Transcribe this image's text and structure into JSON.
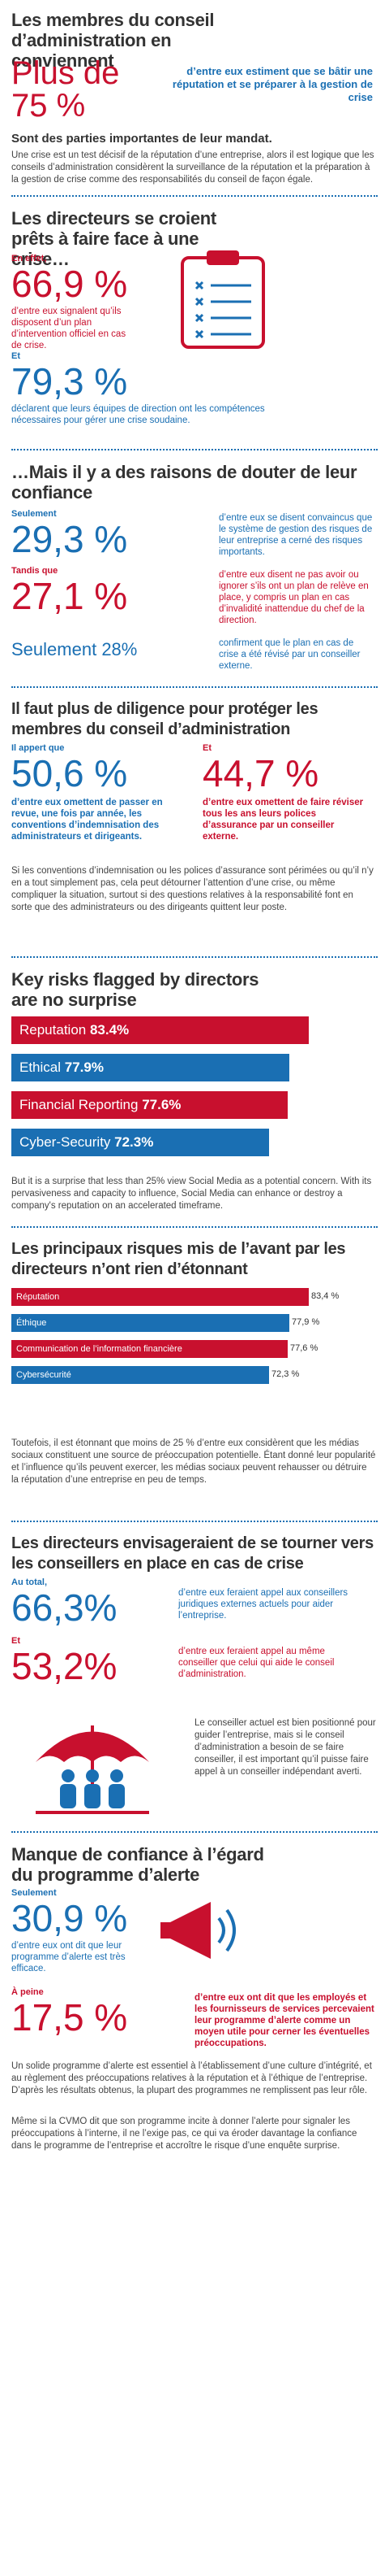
{
  "s1": {
    "title": "Les membres du conseil d’administration en conviennent",
    "big": "Plus de 75 %",
    "side": "d’entre eux estiment que se bâtir une réputation et se préparer à la gestion de crise",
    "sub": "Sont des parties importantes de leur mandat.",
    "para": "Une crise est un test décisif de la réputation d’une entreprise, alors il est logique que les conseils d’administration considèrent la surveillance de la réputation et la préparation à la gestion de crise comme des responsabilités du conseil de façon égale."
  },
  "s2": {
    "title": "Les directeurs se croient prêts à faire face à une crise…",
    "lbl1": "En effet,",
    "v1": "66,9 %",
    "t1": "d’entre eux signalent qu’ils disposent d’un plan d’intervention officiel en cas de crise.",
    "lbl2": "Et",
    "v2": "79,3 %",
    "t2": "déclarent que leurs équipes de direction ont les compétences nécessaires pour gérer une crise soudaine."
  },
  "s3": {
    "title": "…Mais il y a des raisons de douter de leur confiance",
    "lbl1": "Seulement",
    "v1": "29,3 %",
    "t1": "d’entre eux se disent convaincus que le système de gestion des risques de leur entreprise a cerné des risques importants.",
    "lbl2": "Tandis que",
    "v2": "27,1 %",
    "t2": "d’entre eux disent ne pas avoir ou ignorer s’ils ont un plan de relève en place, y compris un plan en cas d’invalidité inattendue du chef de la direction.",
    "lbl3": "Seulement",
    "v3": "28%",
    "t3": "confirment que le plan en cas de crise a été révisé par un conseiller externe."
  },
  "s4": {
    "title": "Il faut plus de diligence pour protéger les membres du conseil d’administration",
    "lbl1": "Il appert que",
    "v1": "50,6 %",
    "t1": "d’entre eux omettent de passer en revue, une fois par année, les conventions d’indemnisation des administrateurs et dirigeants.",
    "lbl2": "Et",
    "v2": "44,7 %",
    "t2": "d’entre eux omettent de faire réviser tous les ans leurs polices d’assurance par un conseiller externe.",
    "para": "Si les conventions d’indemnisation ou les polices d’assurance sont périmées ou qu’il n’y en a tout simplement pas, cela peut détourner l’attention d’une crise, ou même compliquer la situation, surtout si des questions relatives à la responsabilité font en sorte que des administrateurs ou des dirigeants quittent leur poste."
  },
  "s5": {
    "title": "Key risks flagged by directors are no surprise",
    "bars": [
      {
        "label": "Reputation",
        "value": "83.4%",
        "num": 83.4,
        "color": "#c8102e"
      },
      {
        "label": "Ethical",
        "value": "77.9%",
        "num": 77.9,
        "color": "#1a6fb3"
      },
      {
        "label": "Financial Reporting",
        "value": "77.6%",
        "num": 77.6,
        "color": "#c8102e"
      },
      {
        "label": "Cyber-Security",
        "value": "72.3%",
        "num": 72.3,
        "color": "#1a6fb3"
      }
    ],
    "para": "But it is a surprise that less than 25% view Social Media as a potential concern. With its pervasiveness and capacity to influence, Social Media can enhance or destroy a company's reputation on an accelerated timeframe."
  },
  "s6": {
    "title": "Les principaux risques mis de l’avant par les directeurs n’ont rien d’étonnant",
    "bars": [
      {
        "label": "Réputation",
        "value": "83,4 %",
        "num": 83.4,
        "color": "#c8102e"
      },
      {
        "label": "Éthique",
        "value": "77,9 %",
        "num": 77.9,
        "color": "#1a6fb3"
      },
      {
        "label": "Communication de l’information financière",
        "value": "77,6 %",
        "num": 77.6,
        "color": "#c8102e"
      },
      {
        "label": "Cybersécurité",
        "value": "72,3 %",
        "num": 72.3,
        "color": "#1a6fb3"
      }
    ],
    "para": "Toutefois, il est étonnant que moins de 25 % d’entre eux considèrent que les médias sociaux constituent une source de préoccupation potentielle. Étant donné leur popularité et l’influence qu’ils peuvent exercer, les médias sociaux peuvent rehausser ou détruire la réputation d’une entreprise en peu de temps."
  },
  "s7": {
    "title": "Les directeurs envisageraient de se tourner vers les conseillers en place en cas de crise",
    "lbl1": "Au total,",
    "v1": "66,3%",
    "t1": "d’entre eux feraient appel aux conseillers juridiques externes actuels pour aider l’entreprise.",
    "lbl2": "Et",
    "v2": "53,2%",
    "t2": "d’entre eux feraient appel au même conseiller que celui qui aide le conseil d’administration.",
    "para": "Le conseiller actuel est bien positionné pour guider l’entreprise, mais si le conseil d’administration a besoin de se faire conseiller, il est important qu’il puisse faire appel à un conseiller indépendant averti."
  },
  "s8": {
    "title": "Manque de confiance à l’égard du programme d’alerte",
    "lbl1": "Seulement",
    "v1": "30,9 %",
    "t1": "d’entre eux ont dit que leur programme d’alerte est très efficace.",
    "lbl2": "À peine",
    "v2": "17,5 %",
    "t2": "d’entre eux ont dit que les employés et les fournisseurs de services percevaient leur programme d’alerte comme un moyen utile pour cerner les éventuelles préoccupations.",
    "para1": "Un solide programme d’alerte est essentiel à l’établissement d’une culture d’intégrité, et au règlement des préoccupations relatives à la réputation et à l’éthique de l’entreprise. D’après les résultats obtenus, la plupart des programmes ne remplissent pas leur rôle.",
    "para2": "Même si la CVMO dit que son programme incite à donner l’alerte pour signaler les préoccupations à l’interne, il ne l’exige pas, ce qui va éroder davantage la confiance dans le programme de l’entreprise et accroître le risque d’une enquête surprise."
  }
}
